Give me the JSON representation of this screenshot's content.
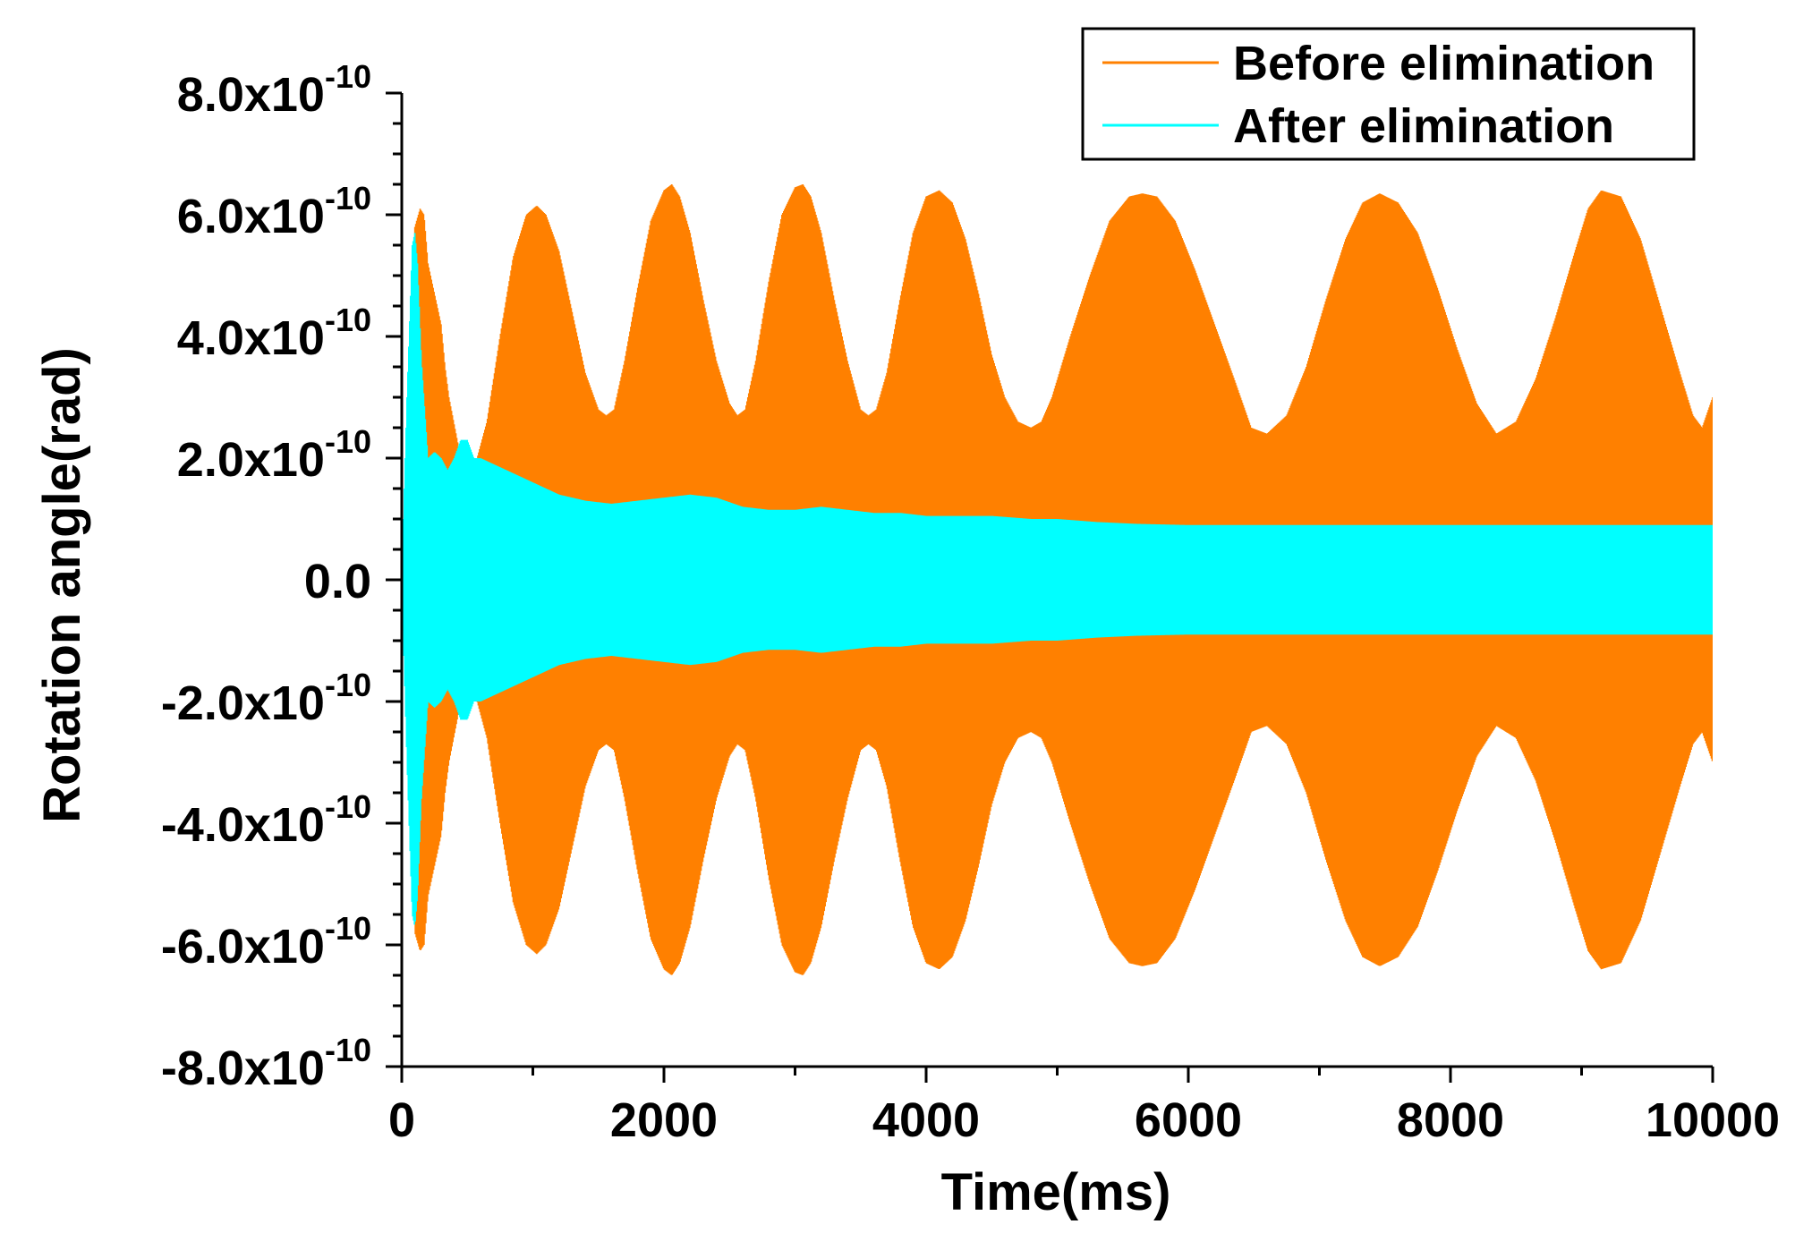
{
  "chart_data": {
    "type": "line",
    "title": "",
    "xlabel": "Time(ms)",
    "ylabel": "Rotation angle(rad)",
    "xlim": [
      0,
      10000
    ],
    "ylim": [
      -8e-10,
      8e-10
    ],
    "x_ticks": [
      0,
      2000,
      4000,
      6000,
      8000,
      10000
    ],
    "x_tick_labels": [
      "0",
      "2000",
      "4000",
      "6000",
      "8000",
      "10000"
    ],
    "y_ticks": [
      {
        "value": 8e-10,
        "mantissa": "8.0x10",
        "exponent": "-10"
      },
      {
        "value": 6e-10,
        "mantissa": "6.0x10",
        "exponent": "-10"
      },
      {
        "value": 4e-10,
        "mantissa": "4.0x10",
        "exponent": "-10"
      },
      {
        "value": 2e-10,
        "mantissa": "2.0x10",
        "exponent": "-10"
      },
      {
        "value": 0,
        "mantissa": "0.0",
        "exponent": ""
      },
      {
        "value": -2e-10,
        "mantissa": "-2.0x10",
        "exponent": "-10"
      },
      {
        "value": -4e-10,
        "mantissa": "-4.0x10",
        "exponent": "-10"
      },
      {
        "value": -6e-10,
        "mantissa": "-6.0x10",
        "exponent": "-10"
      },
      {
        "value": -8e-10,
        "mantissa": "-8.0x10",
        "exponent": "-10"
      }
    ],
    "legend_position": "top-right",
    "series": [
      {
        "name": "Before elimination",
        "color": "#ff8000",
        "style": "oscillating envelope (symmetric about 0)",
        "envelope_x": [
          0,
          60,
          100,
          140,
          170,
          200,
          260,
          300,
          330,
          360,
          450,
          550,
          650,
          750,
          850,
          950,
          1030,
          1100,
          1200,
          1300,
          1400,
          1500,
          1560,
          1620,
          1700,
          1800,
          1900,
          2000,
          2060,
          2120,
          2200,
          2300,
          2400,
          2500,
          2560,
          2620,
          2700,
          2800,
          2900,
          3000,
          3060,
          3120,
          3200,
          3300,
          3400,
          3500,
          3560,
          3620,
          3700,
          3800,
          3900,
          4000,
          4100,
          4200,
          4300,
          4400,
          4500,
          4600,
          4700,
          4800,
          4880,
          4960,
          5100,
          5250,
          5400,
          5550,
          5650,
          5760,
          5900,
          6050,
          6200,
          6350,
          6480,
          6600,
          6750,
          6900,
          7050,
          7200,
          7330,
          7460,
          7600,
          7750,
          7900,
          8050,
          8200,
          8350,
          8500,
          8650,
          8800,
          8950,
          9050,
          9150,
          9300,
          9450,
          9600,
          9750,
          9850,
          9920,
          10000
        ],
        "envelope_amp": [
          0.0,
          3e-10,
          5.8e-10,
          6.1e-10,
          6e-10,
          5.2e-10,
          4.6e-10,
          4.2e-10,
          3.5e-10,
          3e-10,
          2e-10,
          1.8e-10,
          2.6e-10,
          4e-10,
          5.3e-10,
          6e-10,
          6.15e-10,
          6e-10,
          5.4e-10,
          4.4e-10,
          3.4e-10,
          2.8e-10,
          2.7e-10,
          2.8e-10,
          3.6e-10,
          4.8e-10,
          5.9e-10,
          6.4e-10,
          6.5e-10,
          6.3e-10,
          5.7e-10,
          4.6e-10,
          3.6e-10,
          2.9e-10,
          2.7e-10,
          2.8e-10,
          3.6e-10,
          4.9e-10,
          6e-10,
          6.45e-10,
          6.5e-10,
          6.3e-10,
          5.7e-10,
          4.6e-10,
          3.6e-10,
          2.8e-10,
          2.7e-10,
          2.8e-10,
          3.4e-10,
          4.6e-10,
          5.7e-10,
          6.3e-10,
          6.4e-10,
          6.2e-10,
          5.6e-10,
          4.7e-10,
          3.7e-10,
          3e-10,
          2.6e-10,
          2.5e-10,
          2.6e-10,
          3e-10,
          4e-10,
          5e-10,
          5.9e-10,
          6.3e-10,
          6.35e-10,
          6.3e-10,
          5.9e-10,
          5.1e-10,
          4.2e-10,
          3.3e-10,
          2.5e-10,
          2.4e-10,
          2.7e-10,
          3.5e-10,
          4.6e-10,
          5.6e-10,
          6.2e-10,
          6.35e-10,
          6.2e-10,
          5.7e-10,
          4.8e-10,
          3.8e-10,
          2.9e-10,
          2.4e-10,
          2.6e-10,
          3.3e-10,
          4.3e-10,
          5.4e-10,
          6.1e-10,
          6.4e-10,
          6.3e-10,
          5.6e-10,
          4.5e-10,
          3.4e-10,
          2.7e-10,
          2.5e-10,
          3e-10
        ]
      },
      {
        "name": "After elimination",
        "color": "#00ffff",
        "style": "oscillating envelope (symmetric about 0)",
        "envelope_x": [
          0,
          40,
          80,
          100,
          120,
          150,
          200,
          250,
          300,
          350,
          400,
          450,
          500,
          550,
          600,
          700,
          800,
          900,
          1000,
          1200,
          1400,
          1600,
          1800,
          2000,
          2200,
          2400,
          2600,
          2800,
          3000,
          3200,
          3400,
          3600,
          3800,
          4000,
          4200,
          4500,
          4800,
          5000,
          5300,
          5600,
          6000,
          7000,
          8000,
          9000,
          10000
        ],
        "envelope_amp": [
          0.0,
          3e-10,
          5.5e-10,
          5.7e-10,
          5.2e-10,
          3.6e-10,
          2e-10,
          2.1e-10,
          2e-10,
          1.8e-10,
          2e-10,
          2.3e-10,
          2.3e-10,
          2e-10,
          2e-10,
          1.9e-10,
          1.8e-10,
          1.7e-10,
          1.6e-10,
          1.4e-10,
          1.3e-10,
          1.25e-10,
          1.3e-10,
          1.35e-10,
          1.4e-10,
          1.35e-10,
          1.2e-10,
          1.15e-10,
          1.15e-10,
          1.2e-10,
          1.15e-10,
          1.1e-10,
          1.1e-10,
          1.05e-10,
          1.05e-10,
          1.05e-10,
          1e-10,
          1e-10,
          9.5e-11,
          9.2e-11,
          9e-11,
          9e-11,
          9e-11,
          9e-11,
          9e-11
        ]
      }
    ]
  }
}
